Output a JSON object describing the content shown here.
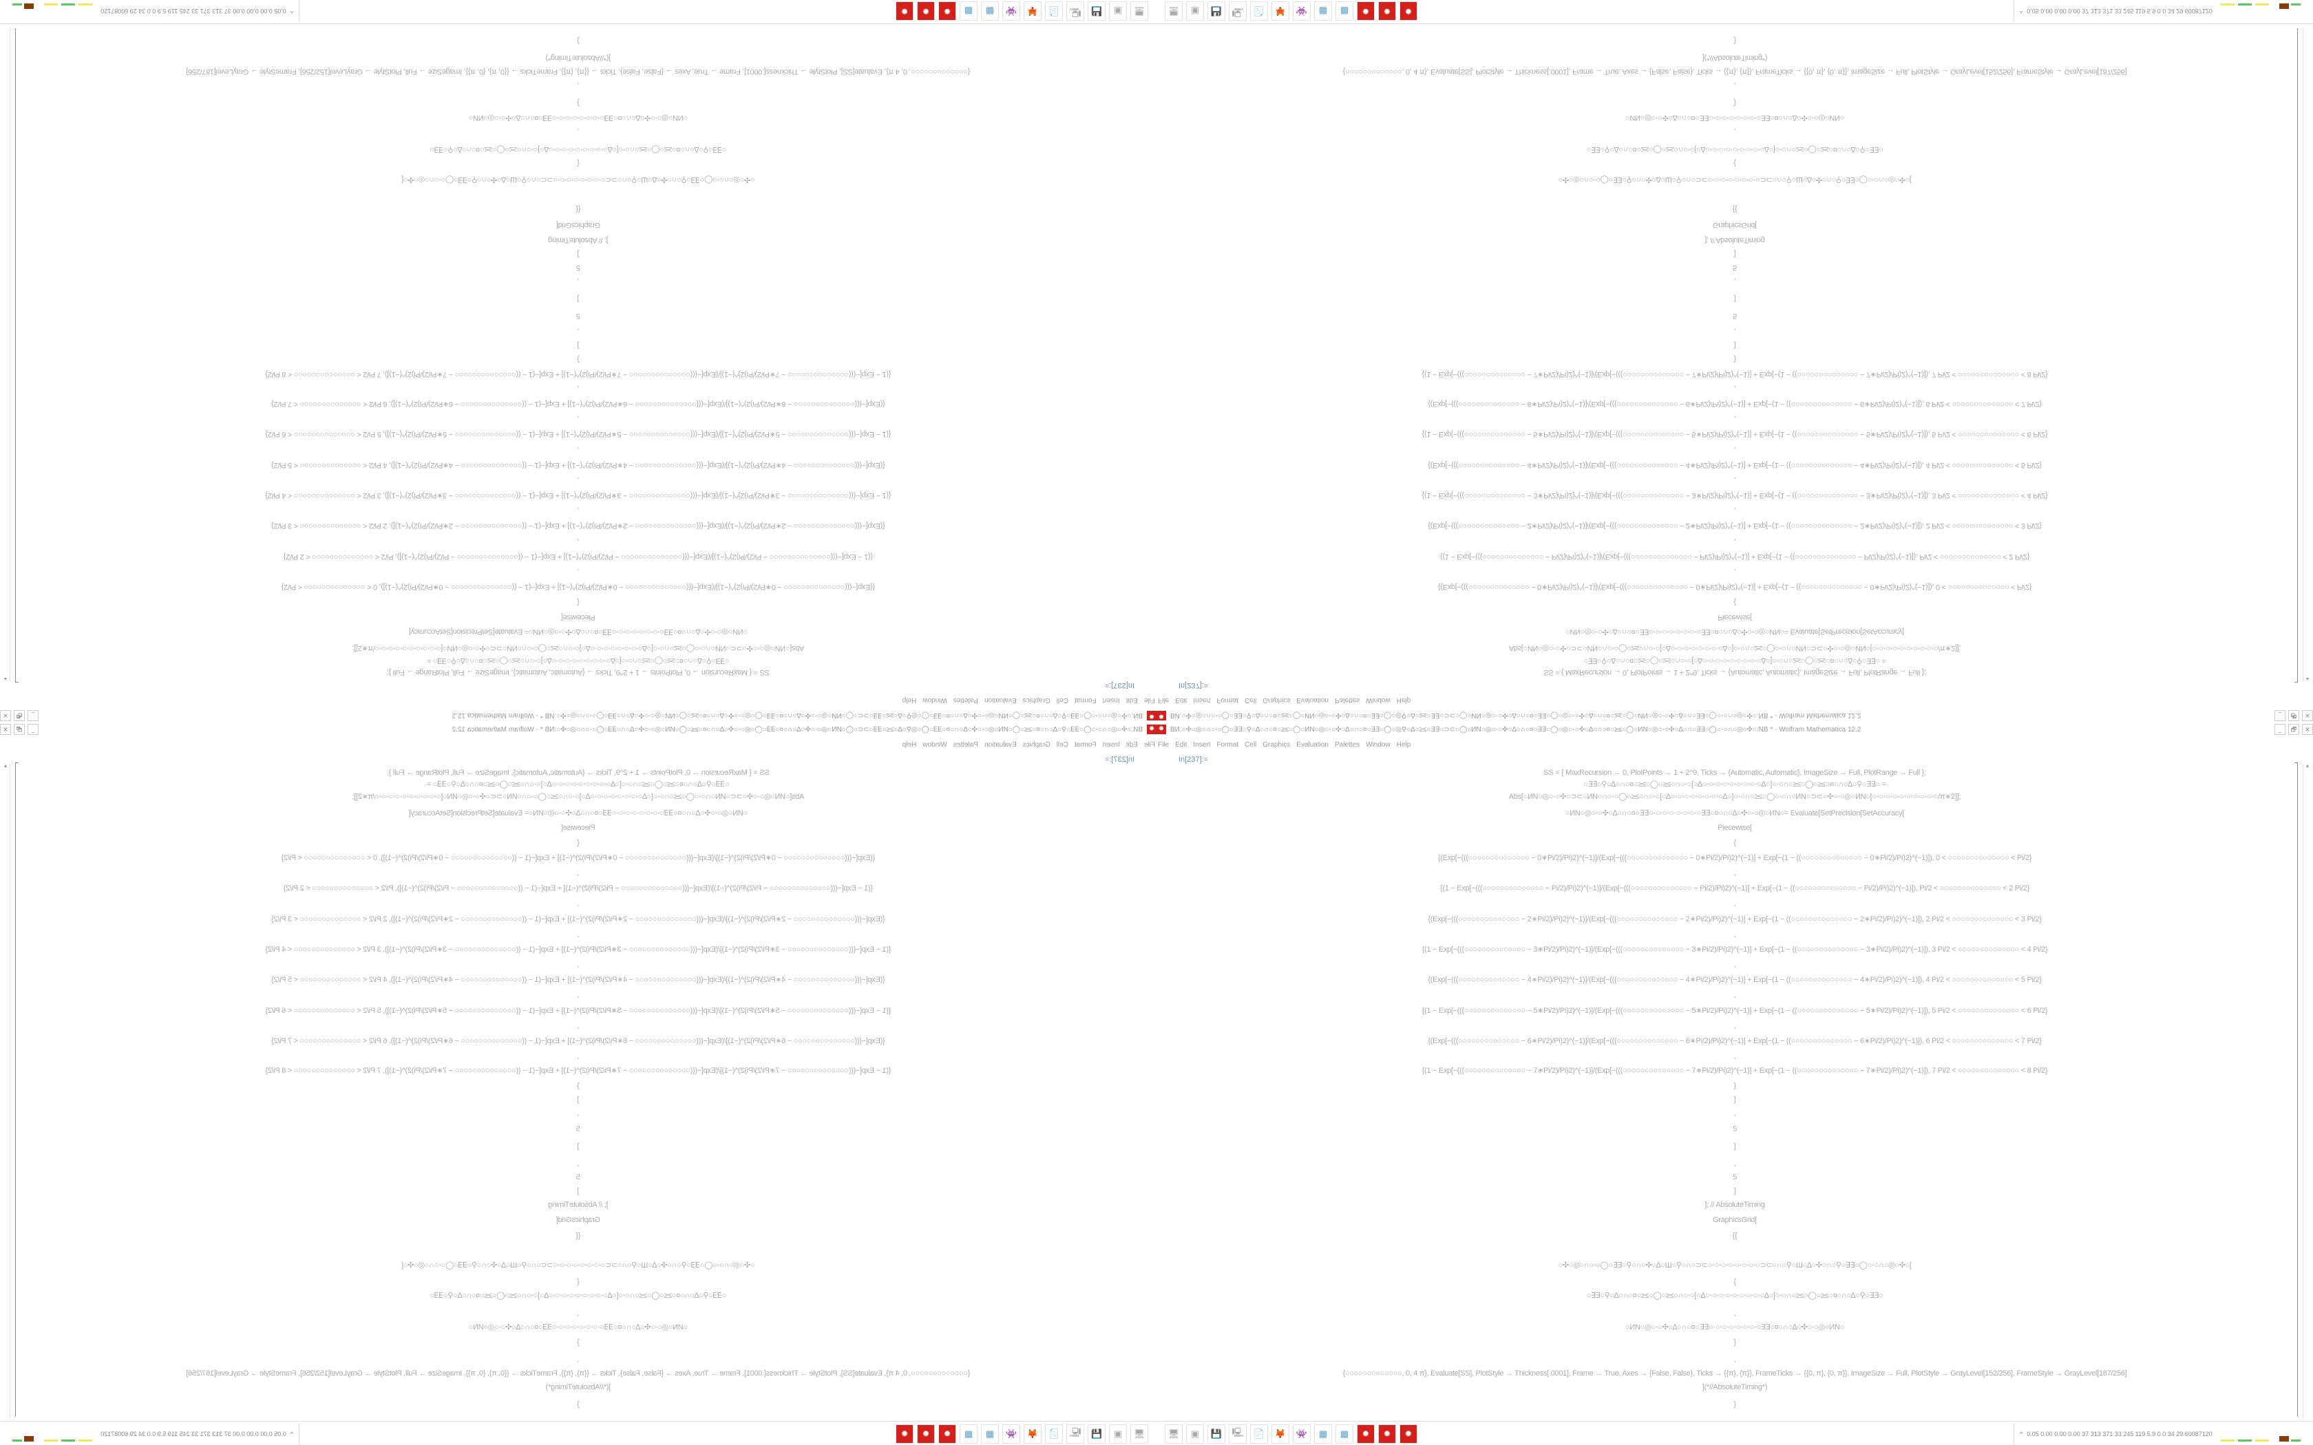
{
  "window": {
    "title": "ВИ.○✣○◎○∩○◦○◯○∃∃○⚲○∆○∩○¤○≥≤○◯○ИN○◎○◦○✣○∆○∩○¤○∃∃○◯○◎⚲○∆○≥≤○∃∃○⊃⊂○◯○ИN○◎○◦○✣○∆○∩○¤○∃∃○◯○◎○◦○✣○∆○∩○¤○≥≤○◯○ИN○◎○◦○✣○∆○∩○∃∃○◯○◦○∩○◎○✣○.NB * - Wolfram Mathematica 12.2",
    "minimize": "_",
    "restore": "🗗",
    "close": "✕"
  },
  "menu": [
    "File",
    "Edit",
    "Insert",
    "Format",
    "Cell",
    "Graphics",
    "Evaluation",
    "Palettes",
    "Window",
    "Help"
  ],
  "cell_label": "In[237]:=",
  "code_lines": [
    "SS = {   MaxRecursion → 0, PlotPoints → 1 + 2^9, Ticks → {Automatic, Automatic}, ImageSize → Full, PlotRange → Full   };",
    "○∃∃○⚲○∆○∩○¤○≥≤○◯○≥≤○∩○◦○[○∆○◦○◦○◦○◦○◦○◦○◦○◦○∆○]○◦○∩○≥≤○◯○≥≤○¤○∩○∆○⚲○∃∃○   =",
    "Abs[○ИN○◎○◦○✣○⊃⊂○ИN○∩○◦○◯○≥≤○∩○◦○[○∆○◦○◦○◦○◦○◦○◦○◦○∆○]○◦○∩○≥≤○◯○◦○∩○ИN○⊃⊂○✣○◦○◎○ИN○[○◦○◦○◦○◦○◦○◦○◦○◦○◦○/π∗2]];",
    "○ИN○◎○◦○✣○∆○∩○¤○∃∃○◦○◦○◦○◦○◦○◦○◦○∃∃○¤○∩○∆○✣○◦○◎○ИN○= Evaluate[SetPrecision[SetAccuracy[",
    "Piecewise[",
    "{",
    "{(Exp[−(((○○○○○○○○○○○○○○ − 0∗Pi/2)/Pi)2)^(−1)]/(Exp[−(((○○○○○○○○○○○○○○ − 0∗Pi/2)/Pi)2)^(−1)] + Exp[−(1 − ((○○○○○○○○○○○○○○ − 0∗Pi/2)/Pi)2)^(−1)]), 0 < ○○○○○○○○○○○○○○ < Pi/2}",
    ",",
    "{(1 − Exp[−(((○○○○○○○○○○○○○○ − Pi/2)/Pi)2)^(−1)]/(Exp[−(((○○○○○○○○○○○○○○ − Pi/2)/Pi)2)^(−1)] + Exp[−(1 − ((○○○○○○○○○○○○○○ − Pi/2)/Pi)2)^(−1)]), Pi/2 < ○○○○○○○○○○○○○○ < 2 Pi/2}",
    ",",
    "{(Exp[−(((○○○○○○○○○○○○○○ − 2∗Pi/2)/Pi)2)^(−1)]/(Exp[−(((○○○○○○○○○○○○○○ − 2∗Pi/2)/Pi)2)^(−1)] + Exp[−(1 − ((○○○○○○○○○○○○○○ − 2∗Pi/2)/Pi)2)^(−1)]), 2 Pi/2 < ○○○○○○○○○○○○○○ < 3 Pi/2}",
    ",",
    "{(1 − Exp[−(((○○○○○○○○○○○○○○ − 3∗Pi/2)/Pi)2)^(−1)]/(Exp[−(((○○○○○○○○○○○○○○ − 3∗Pi/2)/Pi)2)^(−1)] + Exp[−(1 − ((○○○○○○○○○○○○○○ − 3∗Pi/2)/Pi)2)^(−1)]), 3 Pi/2 < ○○○○○○○○○○○○○○ < 4 Pi/2}",
    ",",
    "{(Exp[−(((○○○○○○○○○○○○○○ − 4∗Pi/2)/Pi)2)^(−1)]/(Exp[−(((○○○○○○○○○○○○○○ − 4∗Pi/2)/Pi)2)^(−1)] + Exp[−(1 − ((○○○○○○○○○○○○○○ − 4∗Pi/2)/Pi)2)^(−1)]), 4 Pi/2 < ○○○○○○○○○○○○○○ < 5 Pi/2}",
    ",",
    "{(1 − Exp[−(((○○○○○○○○○○○○○○ − 5∗Pi/2)/Pi)2)^(−1)]/(Exp[−(((○○○○○○○○○○○○○○ − 5∗Pi/2)/Pi)2)^(−1)] + Exp[−(1 − ((○○○○○○○○○○○○○○ − 5∗Pi/2)/Pi)2)^(−1)]), 5 Pi/2 < ○○○○○○○○○○○○○○ < 6 Pi/2}",
    ",",
    "{(Exp[−(((○○○○○○○○○○○○○○ − 6∗Pi/2)/Pi)2)^(−1)]/(Exp[−(((○○○○○○○○○○○○○○ − 6∗Pi/2)/Pi)2)^(−1)] + Exp[−(1 − ((○○○○○○○○○○○○○○ − 6∗Pi/2)/Pi)2)^(−1)]), 6 Pi/2 < ○○○○○○○○○○○○○○ < 7 Pi/2}",
    ",",
    "{(1 − Exp[−(((○○○○○○○○○○○○○○ − 7∗Pi/2)/Pi)2)^(−1)]/(Exp[−(((○○○○○○○○○○○○○○ − 7∗Pi/2)/Pi)2)^(−1)] + Exp[−(1 − ((○○○○○○○○○○○○○○ − 7∗Pi/2)/Pi)2)^(−1)]), 7 Pi/2 < ○○○○○○○○○○○○○○ < 8 Pi/2}",
    "}",
    "]",
    ",",
    "5",
    "]",
    ",",
    "5",
    "]",
    "]; // AbsoluteTiming",
    "GraphicsGrid[",
    "{{",
    "○✣○◎○∩○◦○◯○∃∃○⚲○∩○✣○∆○Ш○⚲○∩○⊃⊂○◦○◦○◦○◦○◦○◦○◦○⊃⊂○∩○⚲○Ш○∆○✣○∩○⚲○∃∃○◯○◦○∩○◎○✣○[",
    "{",
    "○∃∃○⚲○∆○∩○¤○≥≤○◯○≥≤○∩○◦○[○∆○◦○◦○◦○◦○◦○◦○◦○◦○∆○]○◦○∩○≥≤○◯○≥≤○¤○∩○∆○⚲○∃∃○",
    ",",
    "○ИN○◎○◦○✣○∆○∩○¤○∃∃○◦○◦○◦○◦○◦○◦○◦○∃∃○¤○∩○∆○✣○◦○◎○ИN○",
    "}",
    ",",
    "{○○○○○○○○○○○○○, 0, 4 π}, Evaluate[SS], PlotStyle → Thickness[.0001], Frame → True, Axes → {False, False}, Ticks → {{π}, {π}}, FrameTicks → {{0, π}, {0, π}}, ImageSize → Full, PlotStyle → GrayLevel[152/256], FrameStyle → GrayLevel[187/256]",
    "](*//AbsoluteTiming*)",
    "}"
  ],
  "taskbar": {
    "icons": [
      "network-monitor",
      "terminal",
      "floppy-disk",
      "remote-desktop",
      "notepad",
      "firefox",
      "purple-app",
      "calculator",
      "calculator",
      "mathematica",
      "mathematica",
      "mathematica"
    ],
    "glyphs": [
      "🖥",
      "▣",
      "💾",
      "🖳",
      "📄",
      "🦊",
      "👾",
      "▦",
      "▦",
      "✹",
      "✹",
      "✹"
    ],
    "tray_chevron": "^",
    "tray_stats": "0.05 0.00 0.00 0.00  37  313  371  33  245  119  5.9  0.0  34  29  60087120"
  },
  "colors": {
    "app_icon": "#d4201a",
    "cell_label": "#6f8bb0",
    "code_text": "#aaaaaa"
  }
}
